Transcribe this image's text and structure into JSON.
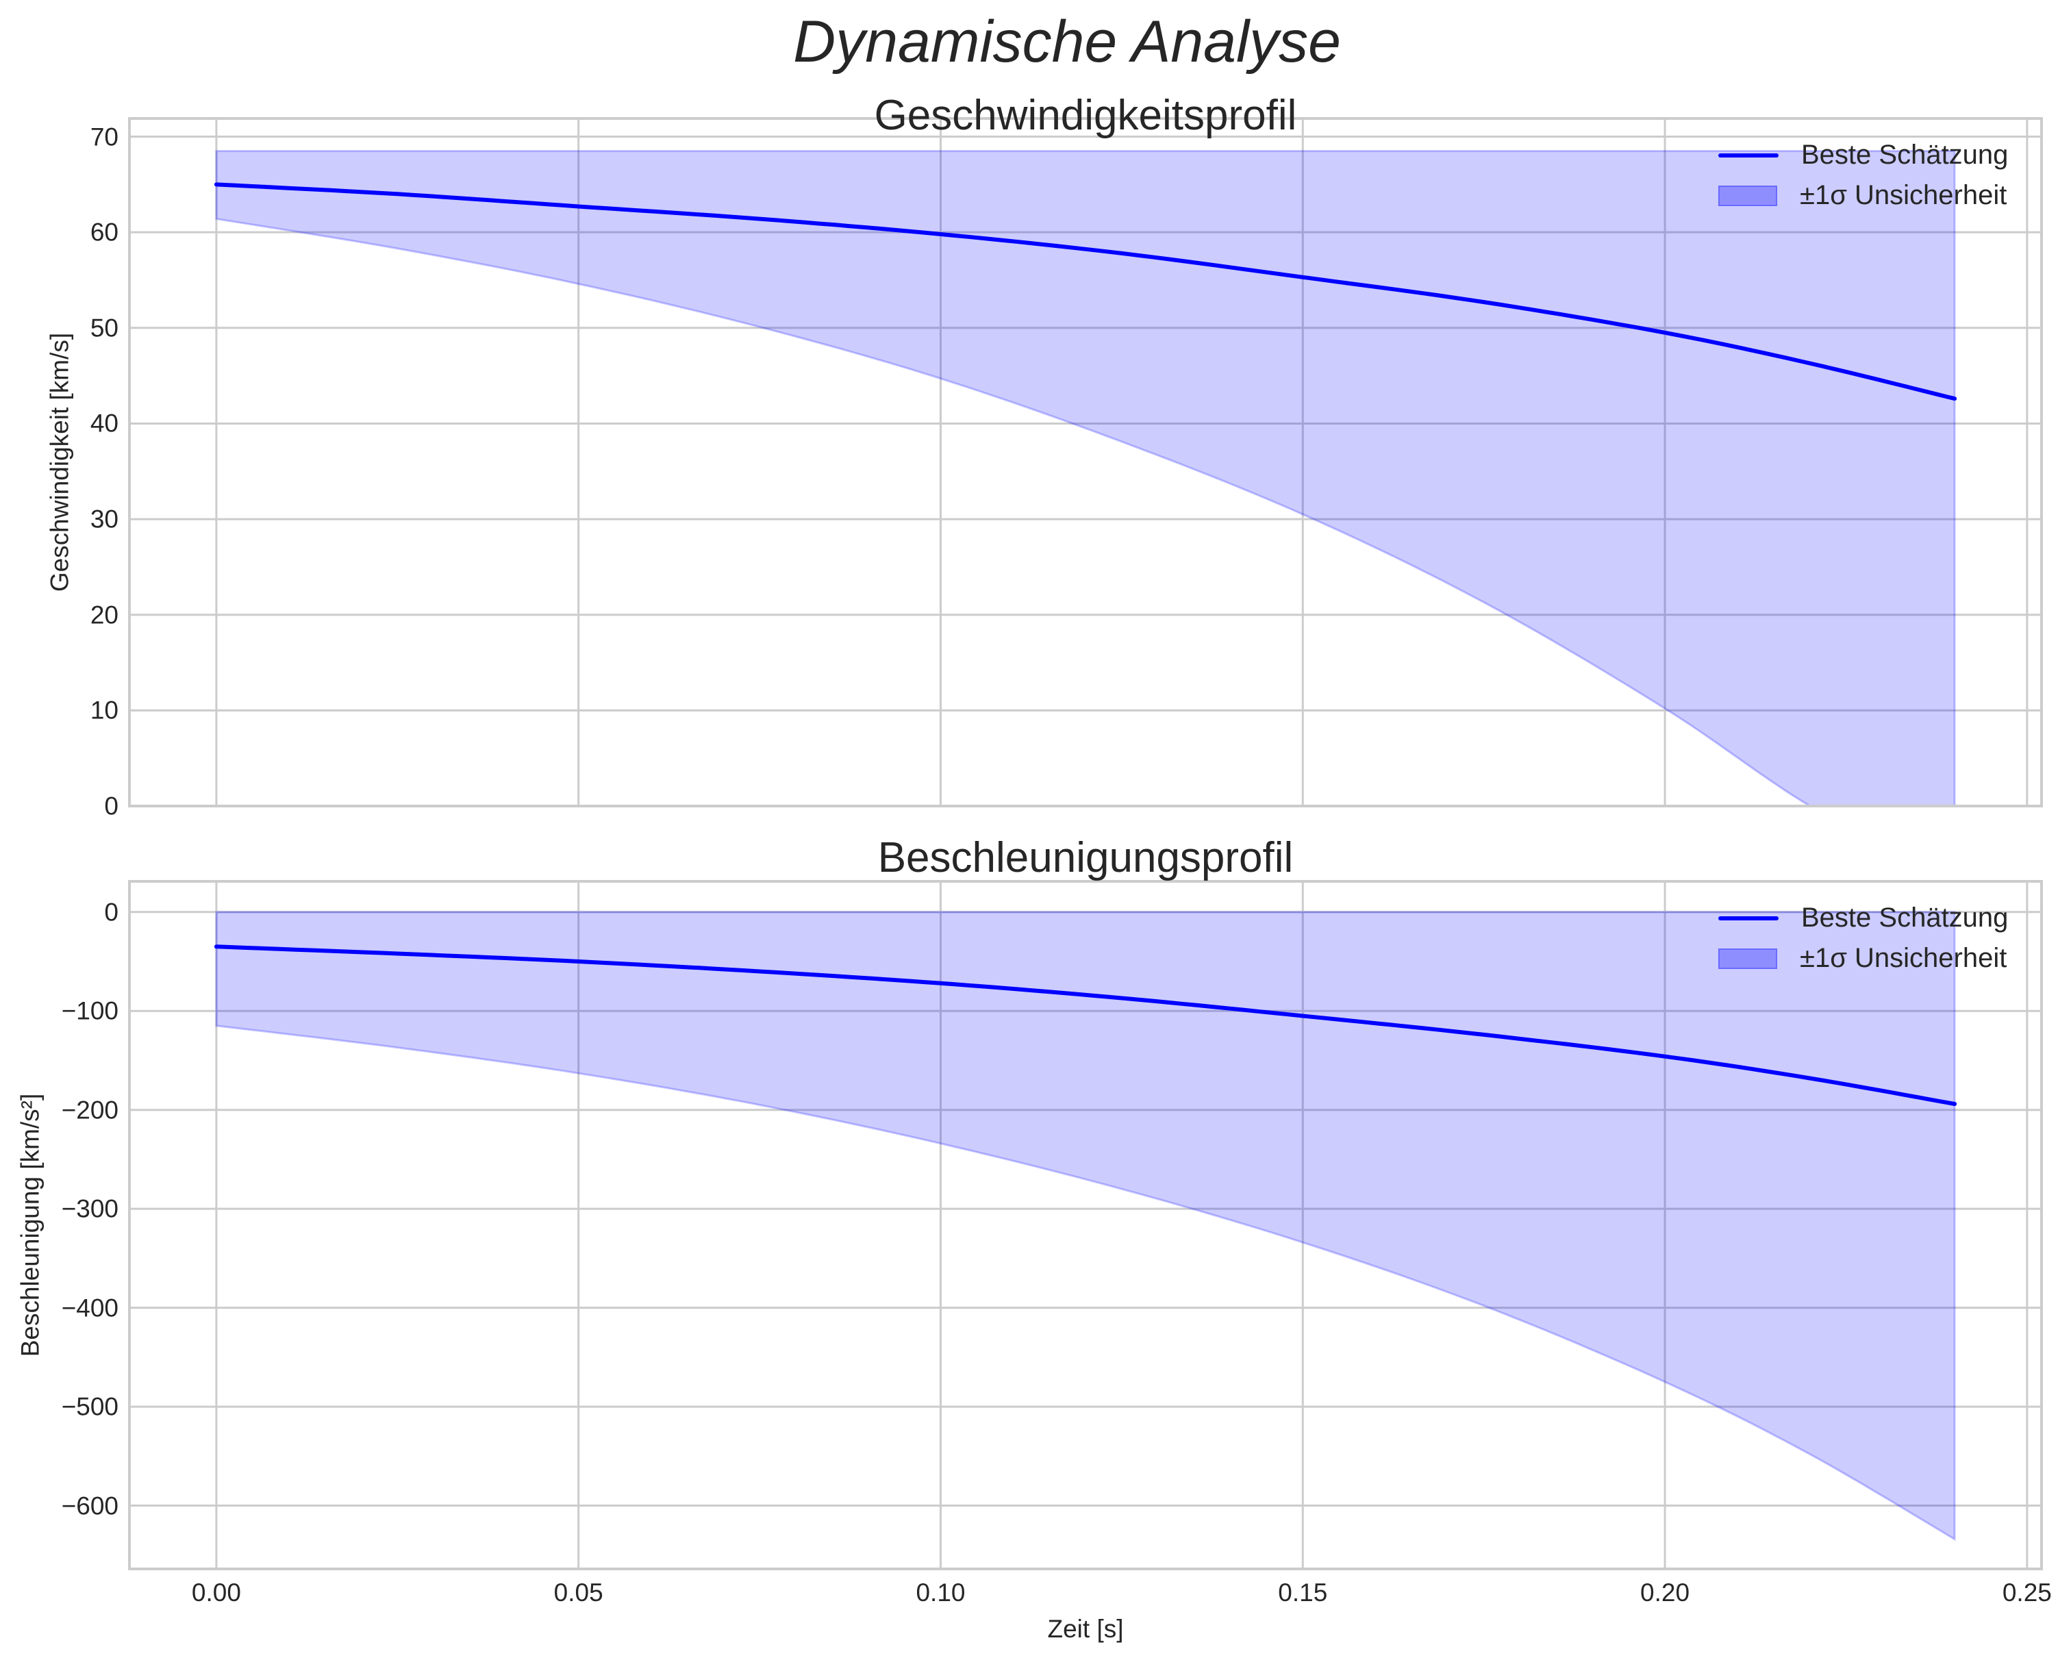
{
  "figure": {
    "suptitle": "Dynamische Analyse",
    "xlabel": "Zeit [s]",
    "colors": {
      "line": "#0000ff",
      "band_fill": "#0000ff",
      "band_alpha": 0.2,
      "grid": "#cccccc",
      "text": "#262626"
    }
  },
  "panels": [
    {
      "title": "Geschwindigkeitsprofil",
      "ylabel": "Geschwindigkeit [km/s]",
      "yticks": [
        "0",
        "10",
        "20",
        "30",
        "40",
        "50",
        "60",
        "70"
      ],
      "xticks": [],
      "legend": {
        "line_label": "Beste Schätzung",
        "band_label": "±1σ Unsicherheit"
      }
    },
    {
      "title": "Beschleunigungsprofil",
      "ylabel": "Beschleunigung [km/s²]",
      "yticks": [
        "0",
        "−100",
        "−200",
        "−300",
        "−400",
        "−500",
        "−600"
      ],
      "xticks": [
        "0.00",
        "0.05",
        "0.10",
        "0.15",
        "0.20",
        "0.25"
      ],
      "legend": {
        "line_label": "Beste Schätzung",
        "band_label": "±1σ Unsicherheit"
      }
    }
  ],
  "chart_data": [
    {
      "type": "line",
      "title": "Geschwindigkeitsprofil",
      "suptitle": "Dynamische Analyse",
      "xlabel": "",
      "ylabel": "Geschwindigkeit [km/s]",
      "xlim": [
        -0.012,
        0.252
      ],
      "ylim": [
        0,
        71.9
      ],
      "grid": true,
      "legend_position": "upper right",
      "xticks": [
        0.0,
        0.05,
        0.1,
        0.15,
        0.2,
        0.25
      ],
      "yticks": [
        0,
        10,
        20,
        30,
        40,
        50,
        60,
        70
      ],
      "x": [
        0.0,
        0.025,
        0.05,
        0.075,
        0.1,
        0.125,
        0.15,
        0.175,
        0.2,
        0.22,
        0.24
      ],
      "series": [
        {
          "name": "Beste Schätzung",
          "kind": "line",
          "values": [
            65.0,
            64.0,
            62.7,
            61.4,
            59.8,
            57.8,
            55.3,
            52.7,
            49.5,
            46.3,
            42.6
          ]
        },
        {
          "name": "±1σ Unsicherheit (untere Grenze)",
          "kind": "band_lower",
          "values": [
            61.4,
            58.3,
            54.6,
            50.1,
            44.7,
            38.1,
            30.5,
            21.3,
            10.2,
            0.0,
            -8.0
          ]
        },
        {
          "name": "±1σ Unsicherheit (obere Grenze)",
          "kind": "band_upper",
          "values": [
            68.5,
            68.5,
            68.5,
            68.5,
            68.5,
            68.5,
            68.5,
            68.5,
            68.5,
            68.5,
            68.5
          ]
        }
      ]
    },
    {
      "type": "line",
      "title": "Beschleunigungsprofil",
      "xlabel": "Zeit [s]",
      "ylabel": "Beschleunigung [km/s²]",
      "xlim": [
        -0.012,
        0.252
      ],
      "ylim": [
        -664,
        31
      ],
      "grid": true,
      "legend_position": "upper right",
      "xticks": [
        0.0,
        0.05,
        0.1,
        0.15,
        0.2,
        0.25
      ],
      "yticks": [
        0,
        -100,
        -200,
        -300,
        -400,
        -500,
        -600
      ],
      "x": [
        0.0,
        0.025,
        0.05,
        0.075,
        0.1,
        0.125,
        0.15,
        0.175,
        0.2,
        0.22,
        0.24
      ],
      "series": [
        {
          "name": "Beste Schätzung",
          "kind": "line",
          "values": [
            -35,
            -42,
            -50,
            -60,
            -72,
            -87,
            -105,
            -124,
            -146,
            -168,
            -194
          ]
        },
        {
          "name": "±1σ Unsicherheit (untere Grenze)",
          "kind": "band_lower",
          "values": [
            -115,
            -137,
            -163,
            -195,
            -234,
            -280,
            -334,
            -398,
            -475,
            -548,
            -634
          ]
        },
        {
          "name": "±1σ Unsicherheit (obere Grenze)",
          "kind": "band_upper",
          "values": [
            0,
            0,
            0,
            0,
            0,
            0,
            0,
            0,
            0,
            0,
            0
          ]
        }
      ]
    }
  ]
}
